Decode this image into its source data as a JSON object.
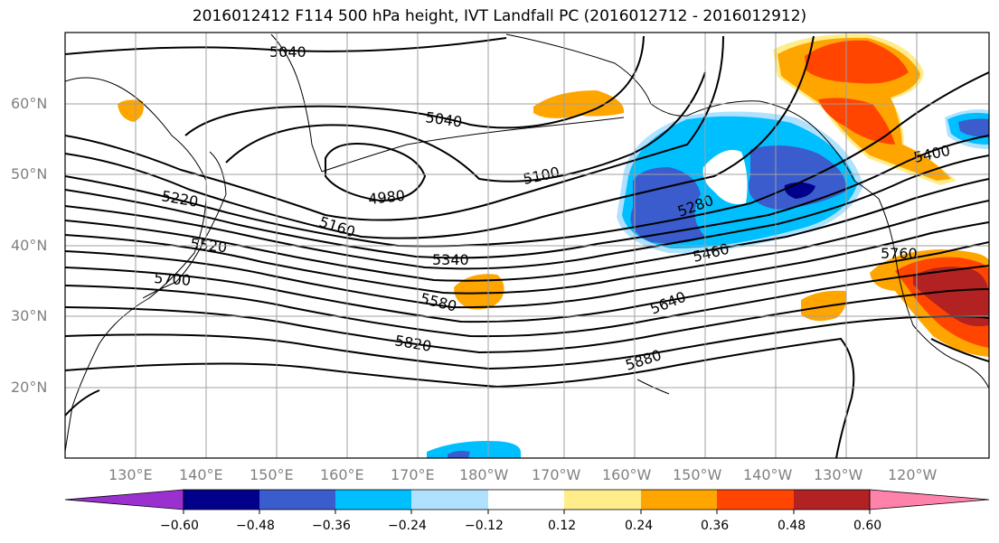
{
  "title": "2016012412 F114 500 hPa height, IVT Landfall PC (2016012712 - 2016012912)",
  "map": {
    "lat_ticks": [
      "60°N",
      "50°N",
      "40°N",
      "30°N",
      "20°N"
    ],
    "lon_ticks": [
      "130°E",
      "140°E",
      "150°E",
      "160°E",
      "170°E",
      "180°W",
      "170°W",
      "160°W",
      "150°W",
      "140°W",
      "130°W",
      "120°W"
    ],
    "contour_labels": [
      "5040",
      "5040",
      "4980",
      "5100",
      "5160",
      "5220",
      "5280",
      "5340",
      "5400",
      "5460",
      "5520",
      "5580",
      "5640",
      "5700",
      "5760",
      "5820",
      "5880"
    ]
  },
  "colorbar": {
    "tick_labels": [
      "−0.60",
      "−0.48",
      "−0.36",
      "−0.24",
      "−0.12",
      "0.12",
      "0.24",
      "0.36",
      "0.48",
      "0.60"
    ],
    "colors": [
      "#9b30d0",
      "#00008b",
      "#3a5ccc",
      "#00bfff",
      "#b0e2ff",
      "#ffffff",
      "#ffec8b",
      "#ffa500",
      "#ff4500",
      "#b22222",
      "#ff82ab"
    ]
  },
  "fill_colors": {
    "neg_light": "#b0e2ff",
    "neg_1": "#00bfff",
    "neg_2": "#3a5ccc",
    "neg_3": "#00008b",
    "pos_light": "#ffec8b",
    "pos_1": "#ffa500",
    "pos_2": "#ff4500",
    "pos_3": "#b22222"
  }
}
